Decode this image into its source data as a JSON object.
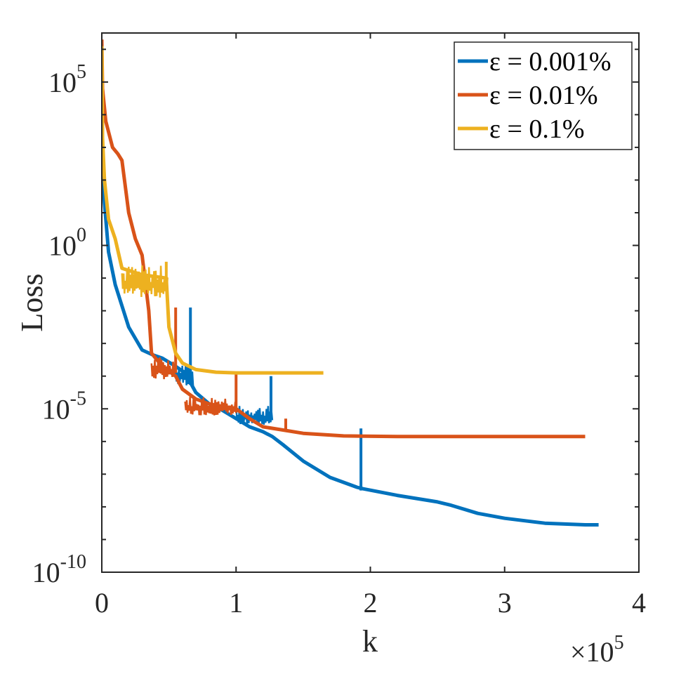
{
  "chart_data": {
    "type": "line",
    "title": "",
    "xlabel": "k",
    "ylabel": "Loss",
    "x_multiplier_label": "×10",
    "x_multiplier_exponent": "5",
    "x_scale": 100000,
    "xlim": [
      0,
      4
    ],
    "ylim_log10": [
      -10,
      6.5
    ],
    "yscale": "log",
    "grid": false,
    "legend_position": "top-right",
    "x_ticks": [
      {
        "value": 0,
        "label": "0"
      },
      {
        "value": 1,
        "label": "1"
      },
      {
        "value": 2,
        "label": "2"
      },
      {
        "value": 3,
        "label": "3"
      },
      {
        "value": 4,
        "label": "4"
      }
    ],
    "y_ticks": [
      {
        "log": 5,
        "base": "10",
        "exp": "5"
      },
      {
        "log": 0,
        "base": "10",
        "exp": "0"
      },
      {
        "log": -5,
        "base": "10",
        "exp": "-5"
      },
      {
        "log": -10,
        "base": "10",
        "exp": "-10"
      }
    ],
    "series": [
      {
        "name": "ε = 0.001%",
        "color": "#0072BD",
        "points": [
          [
            0,
            6.2
          ],
          [
            0.005,
            2.5
          ],
          [
            0.02,
            1.3
          ],
          [
            0.05,
            -0.2
          ],
          [
            0.1,
            -1.2
          ],
          [
            0.2,
            -2.5
          ],
          [
            0.3,
            -3.2
          ],
          [
            0.38,
            -3.35
          ],
          [
            0.45,
            -3.45
          ],
          [
            0.55,
            -3.7
          ],
          [
            0.62,
            -3.9
          ],
          [
            0.7,
            -4.5
          ],
          [
            0.8,
            -4.85
          ],
          [
            0.9,
            -5.05
          ],
          [
            1.0,
            -5.3
          ],
          [
            1.1,
            -5.55
          ],
          [
            1.2,
            -5.7
          ],
          [
            1.27,
            -5.85
          ],
          [
            1.35,
            -6.1
          ],
          [
            1.5,
            -6.6
          ],
          [
            1.7,
            -7.1
          ],
          [
            1.9,
            -7.4
          ],
          [
            1.95,
            -7.45
          ],
          [
            2.2,
            -7.65
          ],
          [
            2.5,
            -7.85
          ],
          [
            2.6,
            -7.95
          ],
          [
            2.8,
            -8.2
          ],
          [
            3.0,
            -8.35
          ],
          [
            3.3,
            -8.5
          ],
          [
            3.6,
            -8.55
          ],
          [
            3.7,
            -8.55
          ]
        ],
        "noise_bands": [
          [
            0.55,
            0.68,
            -3.5,
            -4.3
          ],
          [
            1.0,
            1.27,
            -4.9,
            -5.5
          ]
        ],
        "spikes": [
          [
            0.66,
            -1.9,
            -3.9
          ],
          [
            1.26,
            -4.0,
            -5.3
          ],
          [
            1.93,
            -5.6,
            -7.5
          ]
        ]
      },
      {
        "name": "ε = 0.01%",
        "color": "#D95319",
        "points": [
          [
            0,
            6.3
          ],
          [
            0.005,
            4.8
          ],
          [
            0.03,
            3.8
          ],
          [
            0.08,
            3.0
          ],
          [
            0.12,
            2.8
          ],
          [
            0.15,
            2.6
          ],
          [
            0.2,
            1.0
          ],
          [
            0.25,
            0.2
          ],
          [
            0.3,
            -0.3
          ],
          [
            0.35,
            -2.0
          ],
          [
            0.37,
            -3.3
          ],
          [
            0.45,
            -3.7
          ],
          [
            0.55,
            -4.0
          ],
          [
            0.6,
            -4.4
          ],
          [
            0.7,
            -4.7
          ],
          [
            0.8,
            -4.85
          ],
          [
            1.0,
            -5.0
          ],
          [
            1.1,
            -5.3
          ],
          [
            1.2,
            -5.55
          ],
          [
            1.35,
            -5.65
          ],
          [
            1.5,
            -5.75
          ],
          [
            1.8,
            -5.83
          ],
          [
            2.2,
            -5.85
          ],
          [
            3.0,
            -5.85
          ],
          [
            3.6,
            -5.85
          ]
        ],
        "noise_bands": [
          [
            0.37,
            0.55,
            -3.4,
            -4.1
          ],
          [
            0.62,
            1.0,
            -4.6,
            -5.2
          ]
        ],
        "spikes": [
          [
            0.55,
            -1.9,
            -3.9
          ],
          [
            1.0,
            -3.9,
            -5.0
          ],
          [
            1.37,
            -5.3,
            -5.7
          ]
        ]
      },
      {
        "name": "ε = 0.1%",
        "color": "#EDB120",
        "points": [
          [
            0,
            6.1
          ],
          [
            0.005,
            3.3
          ],
          [
            0.02,
            2.0
          ],
          [
            0.05,
            0.8
          ],
          [
            0.1,
            0.2
          ],
          [
            0.15,
            -0.7
          ],
          [
            0.3,
            -0.9
          ],
          [
            0.48,
            -1.0
          ],
          [
            0.5,
            -2.5
          ],
          [
            0.55,
            -3.3
          ],
          [
            0.6,
            -3.6
          ],
          [
            0.7,
            -3.8
          ],
          [
            0.85,
            -3.88
          ],
          [
            1.0,
            -3.9
          ],
          [
            1.2,
            -3.9
          ],
          [
            1.65,
            -3.9
          ]
        ],
        "noise_bands": [
          [
            0.15,
            0.49,
            -0.6,
            -1.6
          ]
        ],
        "spikes": [
          [
            0.48,
            -0.5,
            -1.3
          ]
        ]
      }
    ]
  }
}
